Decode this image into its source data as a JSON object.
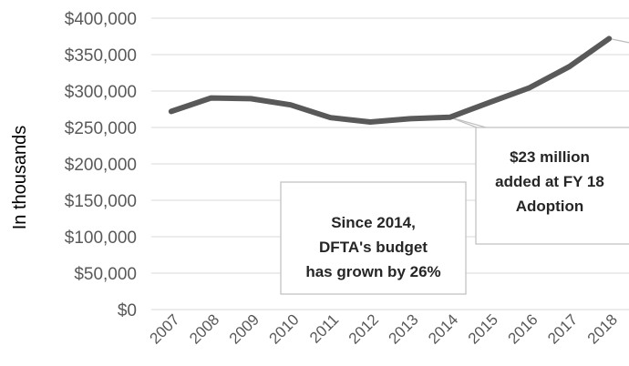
{
  "chart_data": {
    "type": "line",
    "ylabel": "In thousands",
    "categories": [
      "2007",
      "2008",
      "2009",
      "2010",
      "2011",
      "2012",
      "2013",
      "2014",
      "2015",
      "2016",
      "2017",
      "2018"
    ],
    "series": [
      {
        "values": [
          272000,
          290500,
          289500,
          281000,
          263500,
          257500,
          262000,
          264000,
          284500,
          304500,
          333500,
          372000
        ]
      }
    ],
    "ylim": [
      0,
      400000
    ],
    "yticks": [
      "$0",
      "$50,000",
      "$100,000",
      "$150,000",
      "$200,000",
      "$250,000",
      "$300,000",
      "$350,000",
      "$400,000"
    ],
    "grid": true,
    "colors": {
      "line": "#595959",
      "grid": "#d9d9d9",
      "callout_border": "#bfbfbf"
    },
    "annotations": [
      {
        "lines": [
          "Since 2014,",
          "DFTA's budget",
          "has grown by 26%"
        ],
        "points_to": "2014"
      },
      {
        "lines": [
          "$23 million",
          "added at FY 18",
          "Adoption"
        ],
        "points_to": "2018"
      }
    ]
  }
}
